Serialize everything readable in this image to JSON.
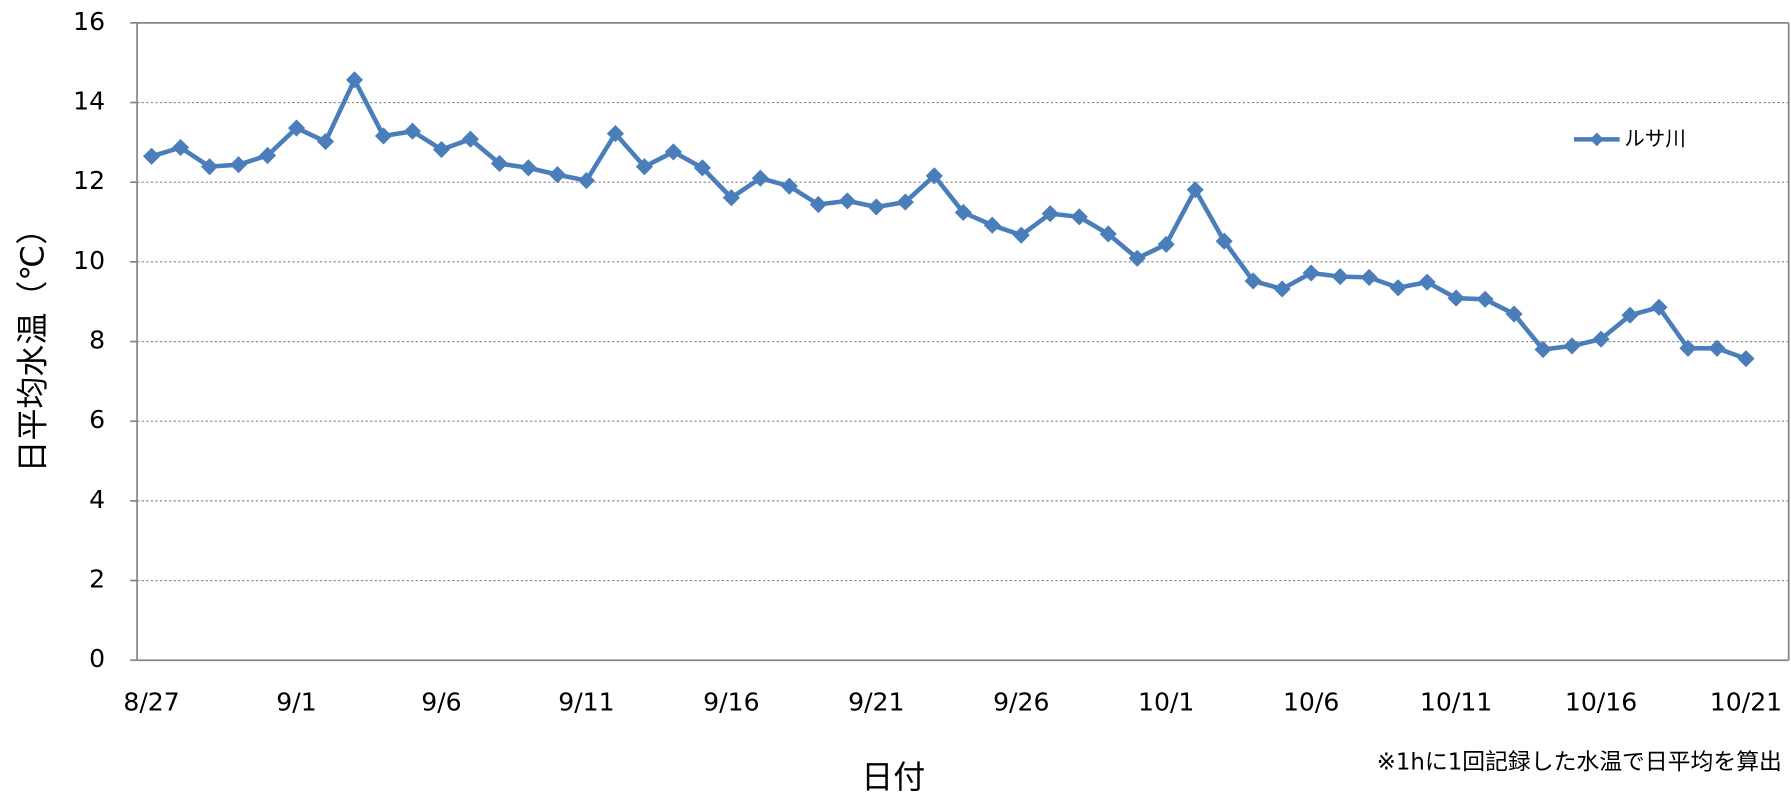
{
  "chart_data": {
    "type": "line",
    "y_label": "日平均水温（℃）",
    "x_label": "日付",
    "note": "※1hに1回記録した水温で日平均を算出",
    "categories": [
      "8/27",
      null,
      null,
      null,
      null,
      "9/1",
      null,
      null,
      null,
      null,
      "9/6",
      null,
      null,
      null,
      null,
      "9/11",
      null,
      null,
      null,
      null,
      "9/16",
      null,
      null,
      null,
      null,
      "9/21",
      null,
      null,
      null,
      null,
      "9/26",
      null,
      null,
      null,
      null,
      "10/1",
      null,
      null,
      null,
      null,
      "10/6",
      null,
      null,
      null,
      null,
      "10/11",
      null,
      null,
      null,
      null,
      "10/16",
      null,
      null,
      null,
      null,
      "10/21"
    ],
    "series": [
      {
        "name": "ルサ川",
        "color": "#4a7ebb",
        "values": [
          12.65,
          12.87,
          12.39,
          12.44,
          12.67,
          13.36,
          13.02,
          14.57,
          13.16,
          13.28,
          12.82,
          13.08,
          12.47,
          12.36,
          12.19,
          12.04,
          13.22,
          12.39,
          12.76,
          12.36,
          11.61,
          12.1,
          11.9,
          11.44,
          11.53,
          11.38,
          11.5,
          12.16,
          11.24,
          10.92,
          10.67,
          11.21,
          11.13,
          10.7,
          10.09,
          10.44,
          11.81,
          10.52,
          9.52,
          9.32,
          9.72,
          9.63,
          9.61,
          9.35,
          9.49,
          9.09,
          9.06,
          8.69,
          7.8,
          7.89,
          8.06,
          8.66,
          8.86,
          7.83,
          7.83,
          7.57
        ]
      }
    ],
    "ylim": [
      0,
      16
    ],
    "yticks": [
      0,
      2,
      4,
      6,
      8,
      10,
      12,
      14,
      16
    ],
    "grid": true,
    "legend": "upper right"
  }
}
